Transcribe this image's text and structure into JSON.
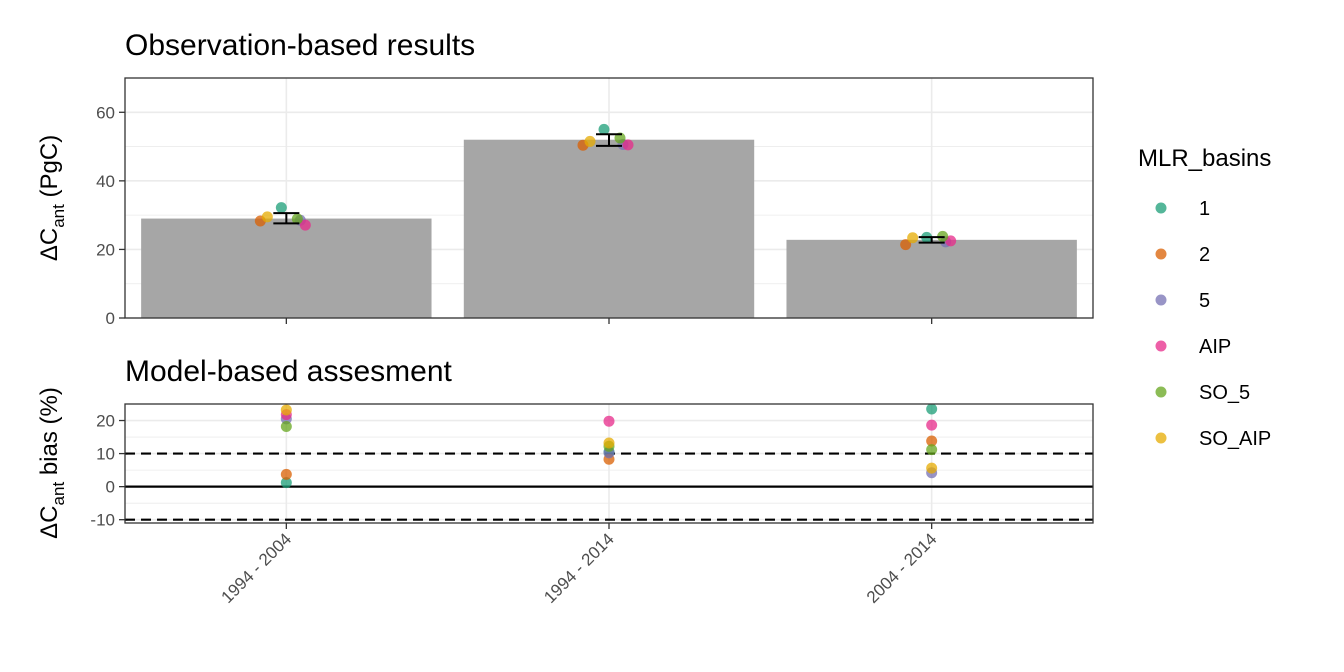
{
  "chart_data": [
    {
      "type": "bar",
      "title": "Observation-based results",
      "ylabel": "ΔC_ant (PgC)",
      "ylabel_parts": [
        "ΔC",
        "ant",
        " (PgC)"
      ],
      "xlabel": "",
      "ylim": [
        0,
        70
      ],
      "yticks": [
        "0",
        "20",
        "40",
        "60"
      ],
      "categories": [
        "1994 - 2004",
        "1994 - 2014",
        "2004 - 2014"
      ],
      "values": [
        29,
        52,
        22.8
      ],
      "error_bars": [
        [
          27.6,
          30.6
        ],
        [
          50.2,
          53.6
        ],
        [
          22,
          23.6
        ]
      ],
      "series": [
        {
          "name": "1",
          "values": [
            32.2,
            55,
            23.5
          ]
        },
        {
          "name": "2",
          "values": [
            28.3,
            50.4,
            21.4
          ]
        },
        {
          "name": "5",
          "values": [
            28.5,
            50.6,
            22.2
          ]
        },
        {
          "name": "AIP",
          "values": [
            27.1,
            50.5,
            22.5
          ]
        },
        {
          "name": "SO_5",
          "values": [
            28.9,
            52.5,
            23.8
          ]
        },
        {
          "name": "SO_AIP",
          "values": [
            29.5,
            51.5,
            23.4
          ]
        }
      ],
      "grid": true
    },
    {
      "type": "scatter",
      "title": "Model-based assesment",
      "ylabel": "ΔC_ant bias (%)",
      "ylabel_parts": [
        "ΔC",
        "ant",
        " bias (%)"
      ],
      "xlabel": "",
      "ylim": [
        -11,
        25
      ],
      "yticks": [
        "-10",
        "0",
        "10",
        "20"
      ],
      "categories": [
        "1994 - 2004",
        "1994 - 2014",
        "2004 - 2014"
      ],
      "reference_lines": {
        "solid": [
          0
        ],
        "dashed": [
          10,
          -10
        ]
      },
      "series": [
        {
          "name": "1",
          "values": [
            1.2,
            10.5,
            23.5
          ]
        },
        {
          "name": "2",
          "values": [
            3.7,
            8.3,
            13.8
          ]
        },
        {
          "name": "5",
          "values": [
            20.5,
            10.2,
            4.2
          ]
        },
        {
          "name": "AIP",
          "values": [
            21.8,
            19.8,
            18.6
          ]
        },
        {
          "name": "SO_5",
          "values": [
            18.2,
            12.2,
            11.2
          ]
        },
        {
          "name": "SO_AIP",
          "values": [
            23.2,
            13.2,
            5.6
          ]
        }
      ],
      "grid": true
    }
  ],
  "legend": {
    "title": "MLR_basins",
    "placement": "right",
    "items": [
      {
        "label": "1",
        "color": "#1b9e77"
      },
      {
        "label": "2",
        "color": "#d95f02"
      },
      {
        "label": "5",
        "color": "#7570b3"
      },
      {
        "label": "AIP",
        "color": "#e7298a"
      },
      {
        "label": "SO_5",
        "color": "#66a61e"
      },
      {
        "label": "SO_AIP",
        "color": "#e6ab02"
      }
    ]
  },
  "colors": {
    "bar_fill": "#a6a6a6",
    "grid": "#ebebeb",
    "panel_border": "#333333"
  }
}
